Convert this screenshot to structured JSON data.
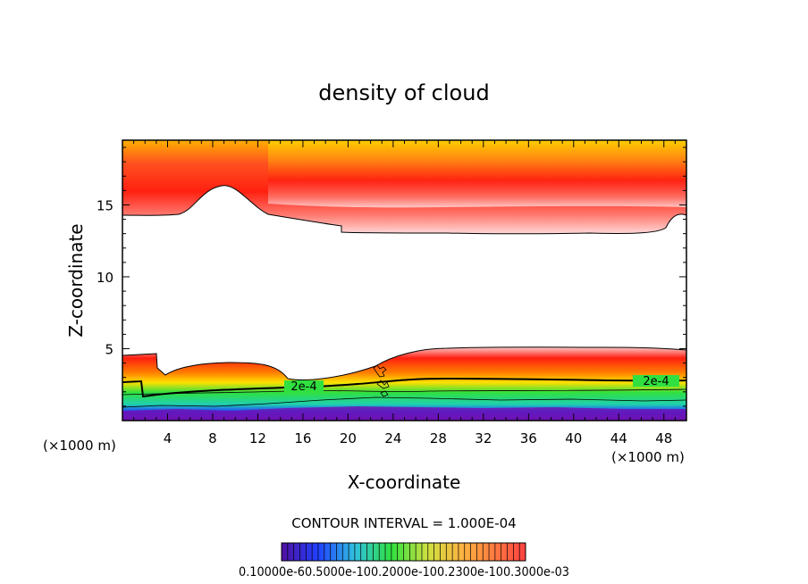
{
  "chart_data": {
    "type": "contour",
    "title": "density of cloud",
    "xlabel": "X-coordinate",
    "ylabel": "Z-coordinate",
    "x_unit_label": "(×1000 m)",
    "xlim": [
      0,
      50
    ],
    "ylim": [
      0,
      19.5
    ],
    "x_ticks": [
      "4",
      "8",
      "12",
      "16",
      "20",
      "24",
      "28",
      "32",
      "36",
      "40",
      "44",
      "48"
    ],
    "x_tick_values": [
      4,
      8,
      12,
      16,
      20,
      24,
      28,
      32,
      36,
      40,
      44,
      48
    ],
    "y_ticks": [
      "5",
      "10",
      "15"
    ],
    "y_tick_values": [
      5,
      10,
      15
    ],
    "contour_interval_text": "CONTOUR INTERVAL = 1.000E-04",
    "contour_labels": [
      "2e-4",
      "2e-4"
    ],
    "colorbar_label_text": "0.10000e-60.5000e-100.2000e-100.2300e-100.3000e-03",
    "colors": {
      "max": "#ffd000",
      "high": "#ff1a10",
      "mid_high": "#ff7a60",
      "edge": "#ffd8d8",
      "green": "#30e040",
      "cyan": "#30c0e0",
      "blue": "#2040ff",
      "purple": "#7010b0"
    }
  }
}
